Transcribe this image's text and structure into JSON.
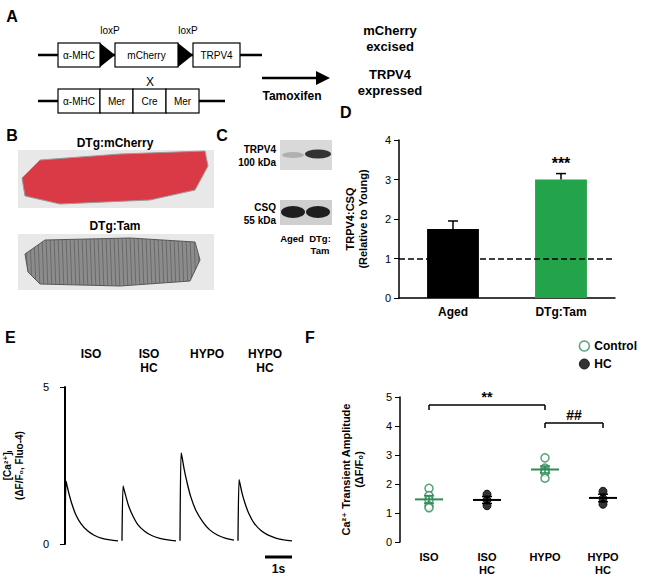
{
  "panels": {
    "A": {
      "label": "A",
      "construct1": {
        "promoter": "α-MHC",
        "loxP": [
          "loxP",
          "loxP"
        ],
        "floxed": "mCherry",
        "gene": "TRPV4"
      },
      "cross": "X",
      "construct2": [
        "α-MHC",
        "Mer",
        "Cre",
        "Mer"
      ],
      "treatment": "Tamoxifen",
      "outcome": [
        "mCherry\nexcised",
        "TRPV4\nexpressed"
      ]
    },
    "B": {
      "label": "B",
      "images": [
        "DTg:mCherry",
        "DTg:Tam"
      ]
    },
    "C": {
      "label": "C",
      "bands": [
        {
          "protein": "TRPV4",
          "size": "100 kDa"
        },
        {
          "protein": "CSQ",
          "size": "55 kDa"
        }
      ],
      "lanes": [
        "Aged",
        "DTg:\nTam"
      ]
    }
  },
  "chart_data": [
    {
      "panel": "D",
      "type": "bar",
      "categories": [
        "Aged",
        "DTg:Tam"
      ],
      "values": [
        1.75,
        3.0
      ],
      "errors": [
        0.2,
        0.15
      ],
      "colors": [
        "#000000",
        "#23a34a"
      ],
      "ylabel": "TRPV4:CSQ\n(Relative to Young)",
      "ylim": [
        0,
        4
      ],
      "yticks": [
        0,
        1,
        2,
        3,
        4
      ],
      "reference_line": {
        "value": 1,
        "line_style": "dashed"
      },
      "annotations": [
        {
          "category": "DTg:Tam",
          "text": "***"
        }
      ]
    },
    {
      "panel": "E",
      "type": "line",
      "x": [
        0,
        0.04,
        0.08,
        0.15,
        0.25,
        0.4,
        0.6,
        0.85,
        1.1,
        1.4,
        1.7,
        2.0
      ],
      "series": [
        {
          "name": "ISO",
          "color": "#000000",
          "values": [
            0.1,
            2.0,
            1.85,
            1.6,
            1.3,
            0.95,
            0.65,
            0.42,
            0.28,
            0.18,
            0.13,
            0.1
          ]
        },
        {
          "name": "ISO\nHC",
          "color": "#000000",
          "values": [
            0.1,
            1.85,
            1.72,
            1.5,
            1.2,
            0.9,
            0.6,
            0.4,
            0.27,
            0.18,
            0.13,
            0.1
          ]
        },
        {
          "name": "HYPO",
          "color": "#000000",
          "values": [
            0.1,
            2.9,
            2.75,
            2.4,
            2.0,
            1.5,
            1.05,
            0.7,
            0.45,
            0.28,
            0.18,
            0.12
          ]
        },
        {
          "name": "HYPO\nHC",
          "color": "#000000",
          "values": [
            0.1,
            2.05,
            1.9,
            1.62,
            1.32,
            0.97,
            0.66,
            0.43,
            0.29,
            0.19,
            0.13,
            0.1
          ]
        }
      ],
      "xlim": [
        0,
        2.0
      ],
      "ylim": [
        0,
        5
      ],
      "yticks": [
        0,
        5
      ],
      "ylabel": "[Ca²⁺]ᵢ\n(ΔF/F₀, Fluo-4)",
      "tick_labels": "y",
      "scale_bar": {
        "value": 1,
        "label": "1s"
      }
    },
    {
      "panel": "F",
      "type": "scatter",
      "categories": [
        "ISO",
        "ISO\nHC",
        "HYPO",
        "HYPO\nHC"
      ],
      "series": [
        {
          "name": "Control",
          "color": "#2e8b57",
          "marker": "circle-open",
          "values": [
            [
              1.85,
              1.6,
              1.45,
              1.25,
              1.18
            ],
            null,
            [
              2.9,
              2.55,
              2.45,
              2.4,
              2.2
            ],
            null
          ],
          "means": [
            1.47,
            null,
            2.5,
            null
          ],
          "errors": [
            0.13,
            null,
            0.12,
            null
          ]
        },
        {
          "name": "HC",
          "color": "#000000",
          "marker": "circle",
          "values": [
            null,
            [
              1.65,
              1.45,
              1.25
            ],
            null,
            [
              1.75,
              1.5,
              1.3
            ]
          ],
          "means": [
            null,
            1.45,
            null,
            1.52
          ],
          "errors": [
            null,
            0.12,
            null,
            0.13
          ]
        }
      ],
      "ylabel": "Ca²⁺ Transient Amplitude\n(ΔF/F₀)",
      "ylim": [
        0,
        5
      ],
      "yticks": [
        0,
        1,
        2,
        3,
        4,
        5
      ],
      "legend": "top-right",
      "annotations": [
        {
          "text": "**",
          "from": "ISO",
          "to": "HYPO"
        },
        {
          "text": "##",
          "from": "HYPO",
          "to": "HYPO\nHC"
        }
      ]
    }
  ]
}
